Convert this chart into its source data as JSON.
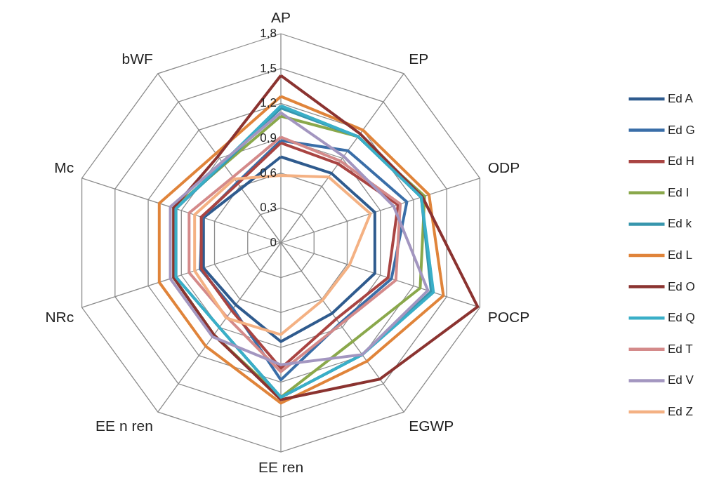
{
  "chart_data": {
    "type": "radar",
    "categories": [
      "AP",
      "EP",
      "ODP",
      "POCP",
      "EGWP",
      "EE ren",
      "EE n ren",
      "NRc",
      "Mc",
      "bWF"
    ],
    "ylim": [
      0,
      1.8
    ],
    "yticks": [
      0,
      {
        "value": 0.3,
        "label": "0,3"
      },
      {
        "value": 0.6,
        "label": "0,6"
      },
      {
        "value": 0.9,
        "label": "0,9"
      },
      {
        "value": 1.2,
        "label": "1,2"
      },
      {
        "value": 1.5,
        "label": "1,5"
      },
      {
        "value": 1.8,
        "label": "1,8"
      }
    ],
    "grid": true,
    "legend": "right",
    "marker": "none",
    "series": [
      {
        "name": "Ed A",
        "color": "#2f5b8e",
        "values": [
          0.74,
          0.74,
          0.85,
          0.85,
          0.75,
          0.85,
          0.66,
          0.7,
          0.7,
          0.58
        ]
      },
      {
        "name": "Ed G",
        "color": "#3a6ea8",
        "values": [
          0.88,
          0.98,
          1.14,
          1.0,
          0.86,
          1.18,
          0.7,
          0.73,
          0.71,
          0.64
        ]
      },
      {
        "name": "Ed H",
        "color": "#a94442",
        "values": [
          0.86,
          0.84,
          1.06,
          0.97,
          0.81,
          1.08,
          0.72,
          0.72,
          0.72,
          0.63
        ]
      },
      {
        "name": "Ed I",
        "color": "#8aa84b",
        "values": [
          1.09,
          1.13,
          1.3,
          1.26,
          1.05,
          1.33,
          0.98,
          0.97,
          0.97,
          0.83
        ]
      },
      {
        "name": "Ed k",
        "color": "#3796ad",
        "values": [
          1.16,
          1.13,
          1.27,
          1.36,
          1.19,
          1.33,
          0.9,
          0.95,
          0.95,
          0.84
        ]
      },
      {
        "name": "Ed L",
        "color": "#e0843a",
        "values": [
          1.26,
          1.2,
          1.34,
          1.47,
          1.26,
          1.38,
          1.1,
          1.1,
          1.1,
          0.95
        ]
      },
      {
        "name": "Ed O",
        "color": "#8b3330",
        "values": [
          1.44,
          1.16,
          1.28,
          1.78,
          1.45,
          1.35,
          0.98,
          0.97,
          0.97,
          0.92
        ]
      },
      {
        "name": "Ed Q",
        "color": "#3aafc8",
        "values": [
          1.18,
          1.13,
          1.27,
          1.38,
          1.19,
          1.33,
          0.9,
          0.95,
          0.95,
          0.85
        ]
      },
      {
        "name": "Ed T",
        "color": "#d48a8a",
        "values": [
          0.91,
          0.87,
          1.08,
          1.04,
          0.87,
          1.11,
          0.79,
          0.83,
          0.83,
          0.7
        ]
      },
      {
        "name": "Ed V",
        "color": "#a396c0",
        "values": [
          1.12,
          0.92,
          1.02,
          1.33,
          1.19,
          1.05,
          1.0,
          1.0,
          1.0,
          0.86
        ]
      },
      {
        "name": "Ed Z",
        "color": "#f4b183",
        "values": [
          0.58,
          0.7,
          0.81,
          0.62,
          0.61,
          0.79,
          0.8,
          0.78,
          0.78,
          0.68
        ]
      }
    ]
  }
}
